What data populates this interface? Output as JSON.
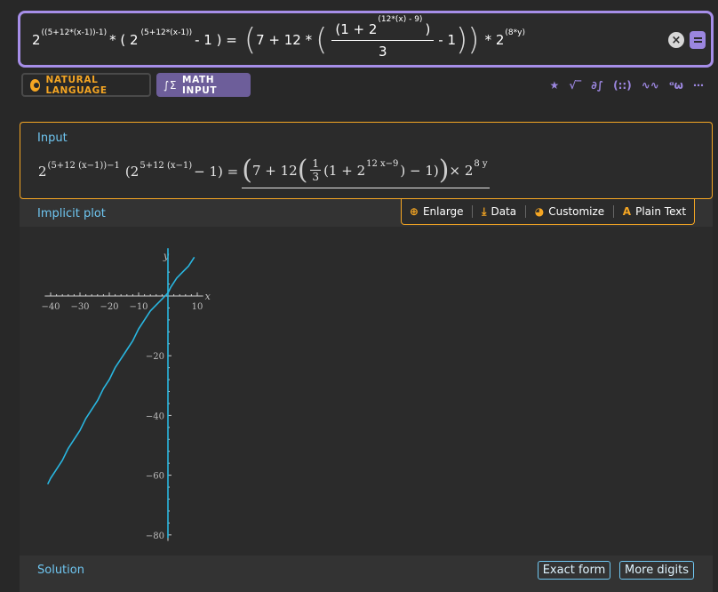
{
  "query": {
    "base": "2",
    "exp_left": "((5+12*(x-1))-1)",
    "times_open": "* ( 2",
    "exp_inner": "(5+12*(x-1))",
    "minus_one_close_eq": "- 1 ) =",
    "seven_plus_twelve": "7 + 12 *",
    "frac_num_open": "(1 + 2",
    "frac_num_exp": "(12*(x) - 9)",
    "frac_num_close": ")",
    "frac_den": "3",
    "minus_one_tail": "- 1",
    "times_two": "* 2",
    "exp_right": "(8*y)"
  },
  "modes": {
    "natural_language": "NATURAL LANGUAGE",
    "math_input": "MATH INPUT",
    "math_icon": "∫Σ"
  },
  "toolbar": {
    "items": [
      {
        "name": "star-icon",
        "glyph": "★"
      },
      {
        "name": "sqrt-icon",
        "glyph": "√‾"
      },
      {
        "name": "partial-integral-icon",
        "glyph": "∂∫"
      },
      {
        "name": "matrix-icon",
        "glyph": "(::)"
      },
      {
        "name": "wave-icon",
        "glyph": "∿∿"
      },
      {
        "name": "alpha-omega-icon",
        "glyph": "ᵅω"
      },
      {
        "name": "more-icon",
        "glyph": "⋯"
      }
    ]
  },
  "input_pod": {
    "title": "Input",
    "f_base": "2",
    "f_exp1": "(5+12 (x−1))−1",
    "f_paren_open": "(2",
    "f_exp2": "5+12 (x−1)",
    "f_minus_eq": "− 1) =",
    "f_seven": "7 + 12",
    "f_frac_n": "1",
    "f_frac_d": "3",
    "f_one_plus": "(1 + 2",
    "f_exp3": "12 x−9",
    "f_minus_one": ") − 1)",
    "f_times": "× 2",
    "f_exp4": "8 y"
  },
  "plot_pod": {
    "title": "Implicit plot",
    "actions": {
      "enlarge": "Enlarge",
      "data": "Data",
      "customize": "Customize",
      "plain_text": "Plain Text",
      "enlarge_icon": "⊕",
      "data_icon": "⤓",
      "customize_icon": "◕",
      "plain_text_icon": "A"
    }
  },
  "chart_data": {
    "type": "line",
    "xlabel": "x",
    "ylabel": "y",
    "xlim": [
      -42,
      12
    ],
    "ylim": [
      -82,
      10
    ],
    "x_ticks": [
      -40,
      -30,
      -20,
      -10,
      10
    ],
    "y_ticks": [
      -20,
      -40,
      -60,
      -80
    ],
    "grid": false,
    "series": [
      {
        "color": "#29b6e0",
        "points": [
          [
            -41,
            -63
          ],
          [
            -40,
            -61
          ],
          [
            -38,
            -58
          ],
          [
            -36,
            -55
          ],
          [
            -34,
            -51
          ],
          [
            -32,
            -48
          ],
          [
            -30,
            -45
          ],
          [
            -28,
            -41
          ],
          [
            -26,
            -38
          ],
          [
            -24,
            -35
          ],
          [
            -22,
            -31
          ],
          [
            -20,
            -28
          ],
          [
            -18,
            -24
          ],
          [
            -16,
            -21
          ],
          [
            -14,
            -18
          ],
          [
            -12,
            -15
          ],
          [
            -10,
            -11
          ],
          [
            -8,
            -8
          ],
          [
            -6,
            -5
          ],
          [
            -4,
            -3
          ],
          [
            -2,
            -1
          ],
          [
            0,
            1
          ],
          [
            1,
            3
          ],
          [
            3,
            6
          ],
          [
            5,
            8
          ],
          [
            7,
            10
          ],
          [
            9,
            13
          ]
        ]
      },
      {
        "color": "#29b6e0",
        "points": [
          [
            0,
            16
          ],
          [
            0,
            -81
          ]
        ]
      }
    ]
  },
  "solution": {
    "title": "Solution",
    "exact_form": "Exact form",
    "more_digits": "More digits"
  }
}
